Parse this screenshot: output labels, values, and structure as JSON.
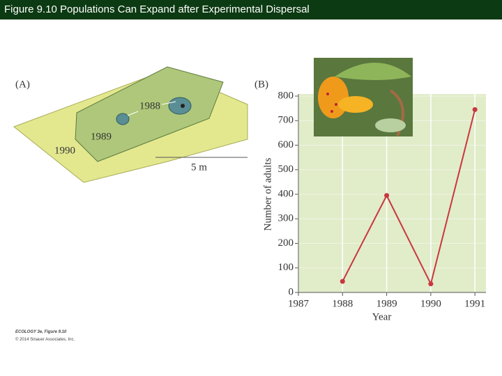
{
  "header": {
    "title": "Figure 9.10 Populations Can Expand after Experimental Dispersal"
  },
  "panel_a": {
    "label": "(A)",
    "areas": [
      "1988",
      "1989",
      "1990"
    ],
    "scale": "5 m"
  },
  "panel_b": {
    "label": "(B)"
  },
  "footer": {
    "source": "ECOLOGY 3e, Figure 9.10",
    "copyright": "© 2014 Sinauer Associates, Inc."
  },
  "chart_data": {
    "type": "line",
    "x_label": "Year",
    "y_label": "Number of adults",
    "x": [
      1988,
      1989,
      1990,
      1991
    ],
    "series": [
      {
        "name": "Adults",
        "color": "#c8373f",
        "values": [
          45,
          395,
          35,
          745
        ]
      }
    ],
    "xlim": [
      1987,
      1991.25
    ],
    "xticks": [
      1987,
      1988,
      1989,
      1990,
      1991
    ],
    "ylim": [
      0,
      800
    ],
    "yticks": [
      0,
      100,
      200,
      300,
      400,
      500,
      600,
      700,
      800
    ],
    "grid": true
  }
}
